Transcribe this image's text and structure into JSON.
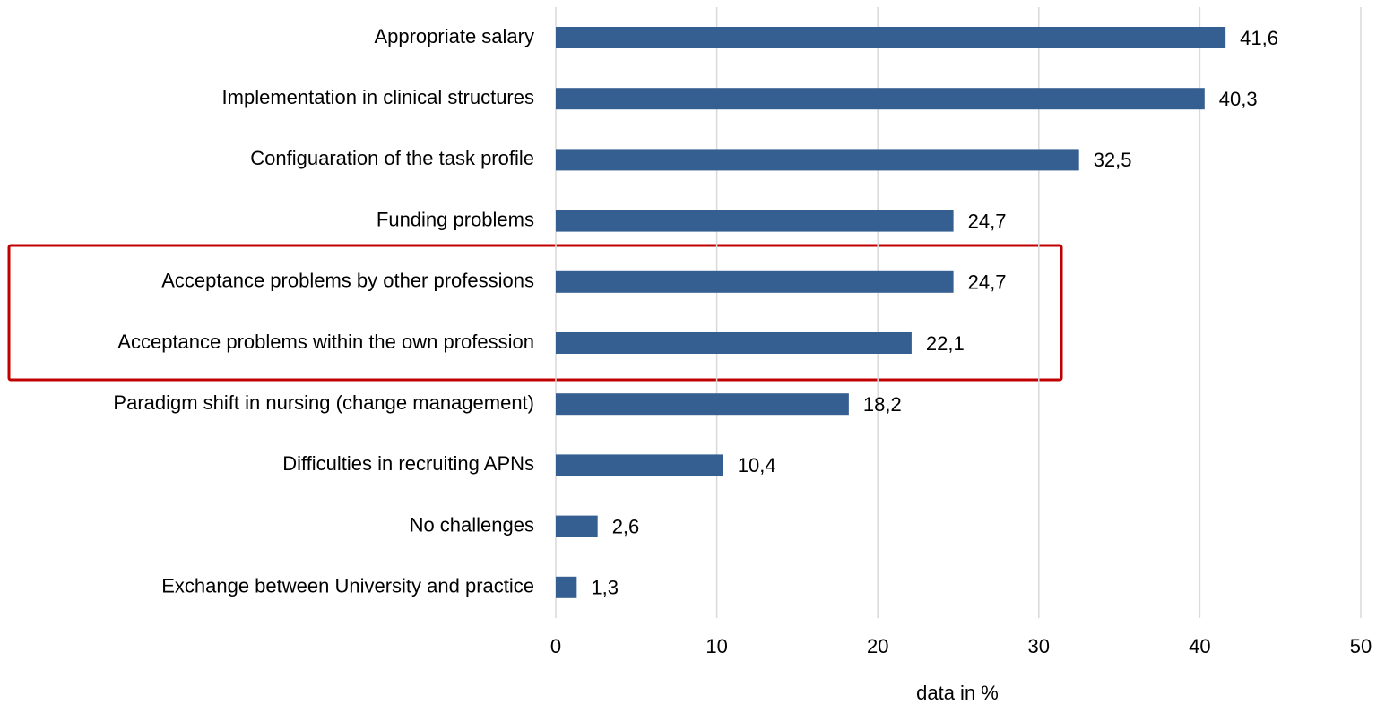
{
  "chart_data": {
    "type": "bar",
    "orientation": "horizontal",
    "categories": [
      "Appropriate salary",
      "Implementation in clinical structures",
      "Configuaration of the task profile",
      "Funding problems",
      "Acceptance problems by other professions",
      "Acceptance problems within the own profession",
      "Paradigm shift in nursing (change management)",
      "Difficulties in recruiting APNs",
      "No challenges",
      "Exchange between University and practice"
    ],
    "values": [
      41.6,
      40.3,
      32.5,
      24.7,
      24.7,
      22.1,
      18.2,
      10.4,
      2.6,
      1.3
    ],
    "value_labels": [
      "41,6",
      "40,3",
      "32,5",
      "24,7",
      "24,7",
      "22,1",
      "18,2",
      "10,4",
      "2,6",
      "1,3"
    ],
    "color": "#365f91",
    "xlabel": "data in %",
    "xlim": [
      0,
      50
    ],
    "xticks": [
      0,
      10,
      20,
      30,
      40,
      50
    ],
    "grid": true
  }
}
